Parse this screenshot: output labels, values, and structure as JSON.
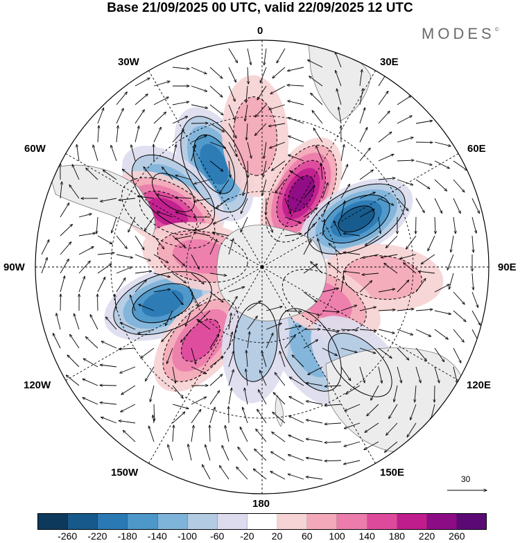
{
  "title": "Base 21/09/2025 00 UTC, valid 22/09/2025 12 UTC",
  "brand": {
    "name": "MODES",
    "mark": "©"
  },
  "lon_labels": {
    "l0": "0",
    "l30e": "30E",
    "l60e": "60E",
    "l90e": "90E",
    "l120e": "120E",
    "l150e": "150E",
    "l180": "180",
    "l150w": "150W",
    "l120w": "120W",
    "l90w": "90W",
    "l60w": "60W",
    "l30w": "30W"
  },
  "reference_vector": {
    "label": "30"
  },
  "colorbar": {
    "colors": [
      "#0d3a5c",
      "#17598a",
      "#2a79b4",
      "#4d97c9",
      "#7fb4da",
      "#b3cbe3",
      "#dcdcee",
      "#ffffff",
      "#f6d3d4",
      "#f3a9b9",
      "#eb7cab",
      "#dd4a9c",
      "#bf1d8e",
      "#8c0c86",
      "#5b0a75"
    ],
    "ticks": [
      "-260",
      "-220",
      "-180",
      "-140",
      "-100",
      "-60",
      "-20",
      "20",
      "60",
      "100",
      "140",
      "180",
      "220",
      "260"
    ]
  },
  "anomalies": [
    {
      "sign": "negative",
      "magnitude": 180,
      "lon_deg": -25,
      "colat_deg": 45
    },
    {
      "sign": "negative",
      "magnitude": 140,
      "lon_deg": -50,
      "colat_deg": 46
    },
    {
      "sign": "positive",
      "magnitude": 220,
      "lon_deg": 28,
      "colat_deg": 33
    },
    {
      "sign": "negative",
      "magnitude": 220,
      "lon_deg": 63,
      "colat_deg": 42
    },
    {
      "sign": "positive",
      "magnitude": 180,
      "lon_deg": -60,
      "colat_deg": 43
    },
    {
      "sign": "negative",
      "magnitude": 180,
      "lon_deg": -110,
      "colat_deg": 42
    },
    {
      "sign": "positive",
      "magnitude": 140,
      "lon_deg": -140,
      "colat_deg": 38
    },
    {
      "sign": "positive",
      "magnitude": 60,
      "lon_deg": 95,
      "colat_deg": 48
    },
    {
      "sign": "negative",
      "magnitude": 100,
      "lon_deg": 150,
      "colat_deg": 38
    },
    {
      "sign": "positive",
      "magnitude": 100,
      "lon_deg": 118,
      "colat_deg": 28
    },
    {
      "sign": "negative",
      "magnitude": 60,
      "lon_deg": -175,
      "colat_deg": 30
    },
    {
      "sign": "negative",
      "magnitude": 60,
      "lon_deg": 135,
      "colat_deg": 55
    },
    {
      "sign": "positive",
      "magnitude": 100,
      "lon_deg": -80,
      "colat_deg": 24
    },
    {
      "sign": "positive",
      "magnitude": 60,
      "lon_deg": -3,
      "colat_deg": 52
    }
  ]
}
